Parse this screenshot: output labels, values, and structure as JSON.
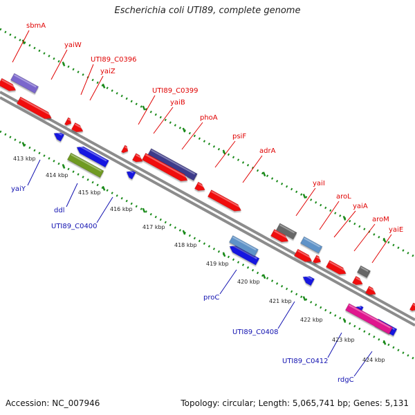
{
  "title": "Escherichia coli UTI89, complete genome",
  "footer": {
    "accession": "Accession: NC_007946",
    "topology": "Topology: circular; Length: 5,065,741 bp; Genes: 5,131"
  },
  "colors": {
    "backbone": "#8c8c8c",
    "forward_label": "#e00000",
    "reverse_label": "#1010b0",
    "tick": "#1a8a1a",
    "red": "#f01010",
    "blue": "#1616e0",
    "purple": "#3c3a8a",
    "lavender": "#7a66cc",
    "olive": "#6f9a20",
    "steel": "#5f93c8",
    "gray": "#666666",
    "magenta": "#e0158e"
  },
  "kbp_labels": [
    "413 kbp",
    "414 kbp",
    "415 kbp",
    "416 kbp",
    "417 kbp",
    "418 kbp",
    "419 kbp",
    "420 kbp",
    "421 kbp",
    "422 kbp",
    "423 kbp",
    "424 kbp"
  ],
  "forward_genes": [
    "sbmA",
    "yaiW",
    "UTI89_C0396",
    "yaiZ",
    "UTI89_C0399",
    "yaiB",
    "phoA",
    "psiF",
    "adrA",
    "yaiI",
    "aroL",
    "yaiA",
    "aroM",
    "yaiE"
  ],
  "reverse_genes": [
    "yaiY",
    "ddl",
    "UTI89_C0400",
    "proC",
    "UTI89_C0408",
    "UTI89_C0412",
    "rdgC"
  ]
}
